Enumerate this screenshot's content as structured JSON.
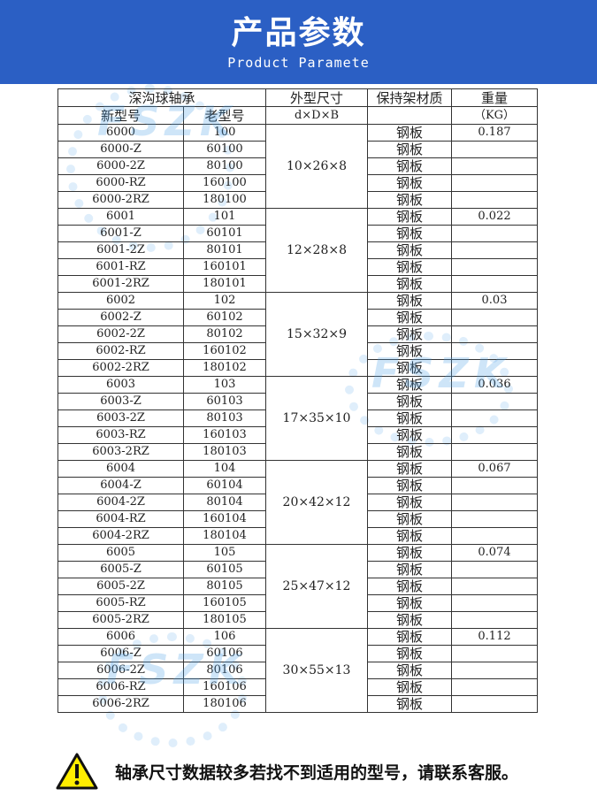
{
  "header": {
    "title": "产品参数",
    "subtitle": "Product Paramete"
  },
  "table": {
    "group_header": "深沟球轴承",
    "new_model_header": "新型号",
    "old_model_header": "老型号",
    "dims_header": "外型尺寸",
    "dims_sub": "d×D×B",
    "material_header": "保持架材质",
    "weight_header": "重量",
    "weight_unit": "（KG）",
    "groups": [
      {
        "dims": "10×26×8",
        "weight": "0.187",
        "rows": [
          [
            "6000",
            "100"
          ],
          [
            "6000-Z",
            "60100"
          ],
          [
            "6000-2Z",
            "80100"
          ],
          [
            "6000-RZ",
            "160100"
          ],
          [
            "6000-2RZ",
            "180100"
          ]
        ]
      },
      {
        "dims": "12×28×8",
        "weight": "0.022",
        "rows": [
          [
            "6001",
            "101"
          ],
          [
            "6001-Z",
            "60101"
          ],
          [
            "6001-2Z",
            "80101"
          ],
          [
            "6001-RZ",
            "160101"
          ],
          [
            "6001-2RZ",
            "180101"
          ]
        ]
      },
      {
        "dims": "15×32×9",
        "weight": "0.03",
        "rows": [
          [
            "6002",
            "102"
          ],
          [
            "6002-Z",
            "60102"
          ],
          [
            "6002-2Z",
            "80102"
          ],
          [
            "6002-RZ",
            "160102"
          ],
          [
            "6002-2RZ",
            "180102"
          ]
        ]
      },
      {
        "dims": "17×35×10",
        "weight": "0.036",
        "rows": [
          [
            "6003",
            "103"
          ],
          [
            "6003-Z",
            "60103"
          ],
          [
            "6003-2Z",
            "80103"
          ],
          [
            "6003-RZ",
            "160103"
          ],
          [
            "6003-2RZ",
            "180103"
          ]
        ]
      },
      {
        "dims": "20×42×12",
        "weight": "0.067",
        "rows": [
          [
            "6004",
            "104"
          ],
          [
            "6004-Z",
            "60104"
          ],
          [
            "6004-2Z",
            "80104"
          ],
          [
            "6004-RZ",
            "160104"
          ],
          [
            "6004-2RZ",
            "180104"
          ]
        ]
      },
      {
        "dims": "25×47×12",
        "weight": "0.074",
        "rows": [
          [
            "6005",
            "105"
          ],
          [
            "6005-Z",
            "60105"
          ],
          [
            "6005-2Z",
            "80105"
          ],
          [
            "6005-RZ",
            "160105"
          ],
          [
            "6005-2RZ",
            "180105"
          ]
        ]
      },
      {
        "dims": "30×55×13",
        "weight": "0.112",
        "rows": [
          [
            "6006",
            "106"
          ],
          [
            "6006-Z",
            "60106"
          ],
          [
            "6006-2Z",
            "80106"
          ],
          [
            "6006-RZ",
            "160106"
          ],
          [
            "6006-2RZ",
            "180106"
          ]
        ]
      }
    ],
    "material": "钢板"
  },
  "watermark": "FSZK",
  "footer": {
    "notice": "轴承尺寸数据较多若找不到适用的型号，请联系客服。",
    "icon": "warning-icon"
  }
}
